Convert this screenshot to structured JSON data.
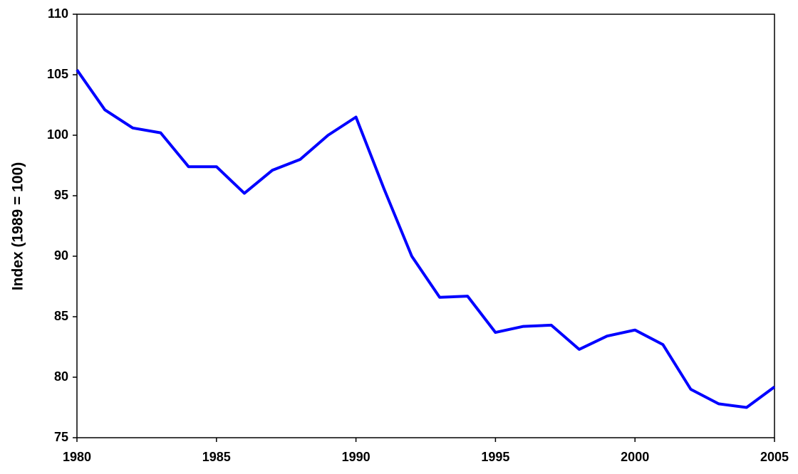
{
  "chart_data": {
    "type": "line",
    "y_label": "Index (1989 = 100)",
    "x": [
      1980,
      1981,
      1982,
      1983,
      1984,
      1985,
      1986,
      1987,
      1988,
      1989,
      1990,
      1991,
      1992,
      1993,
      1994,
      1995,
      1996,
      1997,
      1998,
      1999,
      2000,
      2001,
      2002,
      2003,
      2004,
      2005
    ],
    "series": [
      {
        "color": "#0000ff",
        "values": [
          105.4,
          102.1,
          100.6,
          100.2,
          97.4,
          97.4,
          95.2,
          97.1,
          98.0,
          100,
          101.5,
          95.6,
          90.0,
          86.6,
          86.7,
          83.7,
          84.2,
          84.3,
          82.3,
          83.4,
          83.9,
          82.7,
          79.0,
          77.8,
          77.5,
          79.2
        ]
      }
    ],
    "xlim": [
      1980,
      2005
    ],
    "xticks": [
      1980,
      1985,
      1990,
      1995,
      2000,
      2005
    ],
    "ylim": [
      75,
      110
    ],
    "yticks": [
      75,
      80,
      85,
      90,
      95,
      100,
      105,
      110
    ],
    "grid": false
  }
}
